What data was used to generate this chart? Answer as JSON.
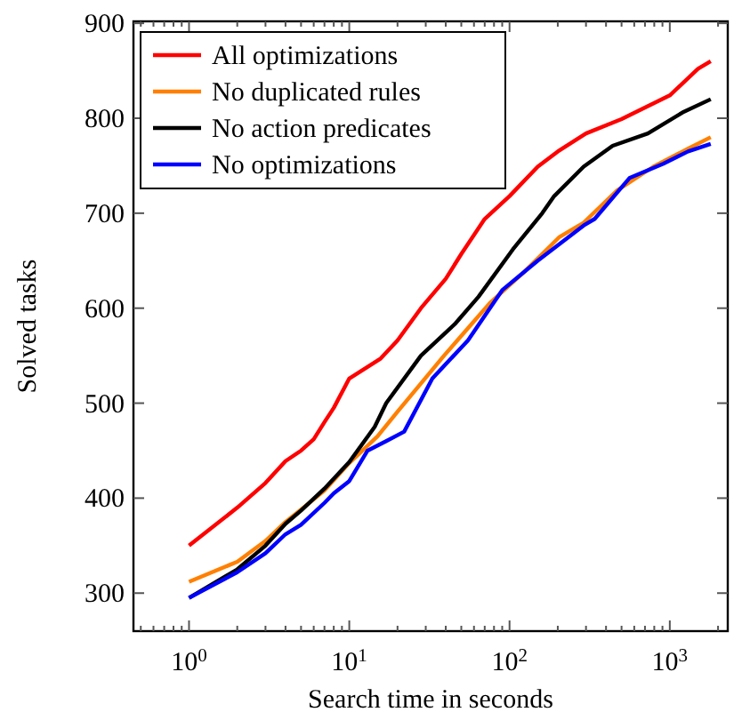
{
  "chart_data": {
    "type": "line",
    "xlabel": "Search time in seconds",
    "ylabel": "Solved tasks",
    "log": "x",
    "xlim": [
      0.45,
      2300
    ],
    "ylim": [
      260,
      902
    ],
    "xticks": [
      {
        "value": 1,
        "label": "10$^{0}$"
      },
      {
        "value": 10,
        "label": "10$^{1}$"
      },
      {
        "value": 100,
        "label": "10$^{2}$"
      },
      {
        "value": 1000,
        "label": "10$^{3}$"
      }
    ],
    "yticks": [
      300,
      400,
      500,
      600,
      700,
      800,
      900
    ],
    "grid": false,
    "legend": "top left",
    "marker": "none",
    "line_style": "solid",
    "series": [
      {
        "name": "All optimizations",
        "color": "#ff0000",
        "x": [
          1,
          2,
          3,
          4,
          5,
          6,
          7,
          8,
          10,
          15.7,
          20,
          28,
          40,
          50,
          70,
          100,
          150,
          200,
          300,
          500,
          1000,
          1500,
          1800
        ],
        "values": [
          350,
          390,
          416,
          439,
          450,
          462,
          480,
          495,
          526,
          547,
          566,
          600,
          631,
          657,
          694,
          718,
          749,
          765,
          784,
          799,
          824,
          852,
          860
        ]
      },
      {
        "name": "No duplicated rules",
        "color": "#ff8000",
        "x": [
          1,
          2,
          3,
          4,
          5,
          7,
          10,
          15,
          20,
          39,
          76,
          123,
          205,
          290,
          470,
          790,
          1300,
          1800
        ],
        "values": [
          312,
          333,
          355,
          375,
          388,
          408,
          437,
          465,
          491,
          550,
          606,
          638,
          675,
          690,
          724,
          749,
          768,
          780
        ]
      },
      {
        "name": "No action predicates",
        "color": "#000000",
        "x": [
          1,
          2,
          3,
          4,
          5,
          7,
          10,
          14.4,
          17,
          28,
          46,
          64,
          105,
          160,
          190,
          290,
          440,
          730,
          1200,
          1800
        ],
        "values": [
          295,
          325,
          350,
          373,
          387,
          410,
          438,
          475,
          500,
          550,
          584,
          612,
          662,
          700,
          718,
          749,
          771,
          784,
          806,
          820
        ]
      },
      {
        "name": "No optimizations",
        "color": "#0000ff",
        "x": [
          1,
          2,
          3,
          4,
          5,
          7,
          8,
          10,
          13,
          17,
          22,
          33,
          55,
          90,
          150,
          290,
          340,
          560,
          910,
          1300,
          1800
        ],
        "values": [
          295,
          322,
          342,
          362,
          372,
          395,
          405,
          418,
          450,
          460,
          470,
          526,
          566,
          619,
          650,
          687,
          694,
          737,
          752,
          765,
          773
        ]
      }
    ]
  }
}
